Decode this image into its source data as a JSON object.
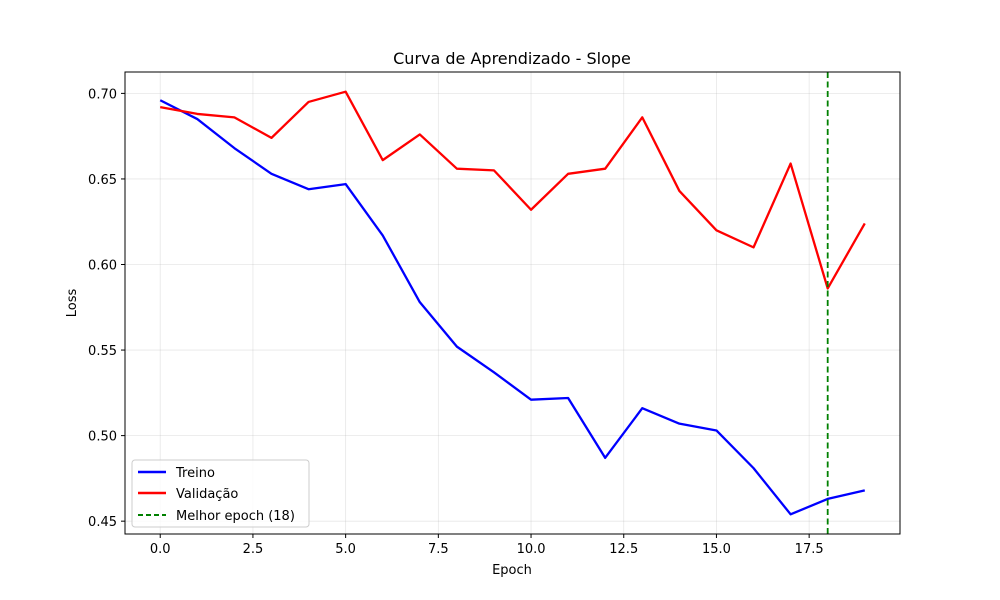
{
  "chart_data": {
    "type": "line",
    "title": "Curva de Aprendizado - Slope",
    "xlabel": "Epoch",
    "ylabel": "Loss",
    "xlim": [
      -0.95,
      19.95
    ],
    "ylim": [
      0.4425,
      0.7125
    ],
    "xticks": [
      0,
      2.5,
      5,
      7.5,
      10,
      12.5,
      15,
      17.5
    ],
    "xtick_labels": [
      "0.0",
      "2.5",
      "5.0",
      "7.5",
      "10.0",
      "12.5",
      "15.0",
      "17.5"
    ],
    "yticks": [
      0.45,
      0.5,
      0.55,
      0.6,
      0.65,
      0.7
    ],
    "ytick_labels": [
      "0.45",
      "0.50",
      "0.55",
      "0.60",
      "0.65",
      "0.70"
    ],
    "grid": true,
    "legend_position": "lower-left",
    "x": [
      0,
      1,
      2,
      3,
      4,
      5,
      6,
      7,
      8,
      9,
      10,
      11,
      12,
      13,
      14,
      15,
      16,
      17,
      18,
      19
    ],
    "series": [
      {
        "name": "Treino",
        "color": "#0000ff",
        "style": "solid",
        "values": [
          0.696,
          0.685,
          0.668,
          0.653,
          0.644,
          0.647,
          0.617,
          0.578,
          0.552,
          0.537,
          0.521,
          0.522,
          0.487,
          0.516,
          0.507,
          0.503,
          0.481,
          0.454,
          0.463,
          0.468
        ]
      },
      {
        "name": "Validação",
        "color": "#ff0000",
        "style": "solid",
        "values": [
          0.692,
          0.688,
          0.686,
          0.674,
          0.695,
          0.701,
          0.661,
          0.676,
          0.656,
          0.655,
          0.632,
          0.653,
          0.656,
          0.686,
          0.643,
          0.62,
          0.61,
          0.659,
          0.586,
          0.624
        ]
      }
    ],
    "vline": {
      "name": "Melhor epoch (18)",
      "x": 18,
      "color": "#008000",
      "style": "dashed"
    }
  }
}
